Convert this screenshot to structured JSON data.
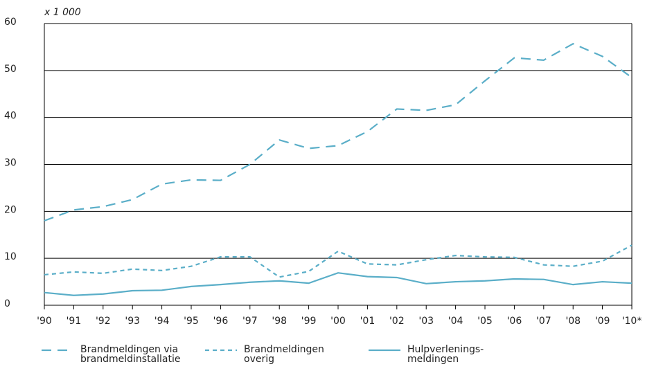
{
  "chart_data": {
    "type": "line",
    "unit_label": "x 1 000",
    "categories": [
      "'90",
      "'91",
      "'92",
      "'93",
      "'94",
      "'95",
      "'96",
      "'97",
      "'98",
      "'99",
      "'00",
      "'01",
      "'02",
      "'03",
      "'04",
      "'05",
      "'06",
      "'07",
      "'08",
      "'09",
      "'10*"
    ],
    "series": [
      {
        "name": "Brandmeldingen via brandmeldinstallatie",
        "color": "#5aaec8",
        "style": "long-dash",
        "values": [
          18,
          20.3,
          21,
          22.5,
          25.8,
          26.7,
          26.6,
          30,
          35.2,
          33.4,
          34,
          37,
          41.8,
          41.5,
          42.7,
          47.8,
          52.7,
          52.2,
          55.7,
          53,
          48.5
        ]
      },
      {
        "name": "Brandmeldingen overig",
        "color": "#5aaec8",
        "style": "short-dash",
        "values": [
          6.5,
          7.1,
          6.8,
          7.7,
          7.4,
          8.3,
          10.3,
          10.3,
          6,
          7.2,
          11.5,
          8.8,
          8.6,
          9.7,
          10.6,
          10.3,
          10.2,
          8.6,
          8.3,
          9.4,
          12.8
        ]
      },
      {
        "name": "Hulpverlenings-meldingen",
        "color": "#5aaec8",
        "style": "solid",
        "values": [
          2.7,
          2.1,
          2.4,
          3.1,
          3.2,
          4,
          4.4,
          4.9,
          5.2,
          4.7,
          6.9,
          6.1,
          5.9,
          4.6,
          5,
          5.2,
          5.6,
          5.5,
          4.4,
          5,
          4.7
        ]
      }
    ],
    "ylim": [
      0,
      60
    ],
    "yticks": [
      0,
      10,
      20,
      30,
      40,
      50,
      60
    ],
    "grid": true
  }
}
